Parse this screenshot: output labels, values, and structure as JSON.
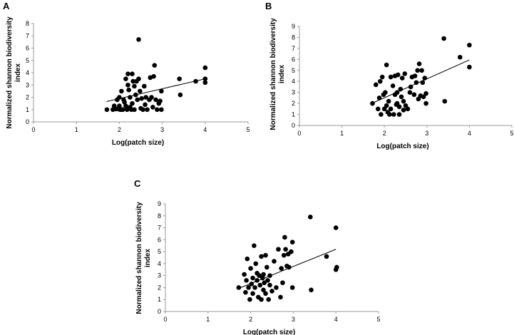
{
  "chart_data": [
    {
      "panel_label": "A",
      "type": "scatter",
      "xlabel": "Log(patch size)",
      "ylabel_lines": [
        "Normalized shannon biodiversity",
        "index"
      ],
      "xlim": [
        0,
        5
      ],
      "ylim": [
        0,
        8
      ],
      "xticks": [
        0,
        1,
        2,
        3,
        4,
        5
      ],
      "yticks": [
        0,
        1,
        2,
        3,
        4,
        5,
        6,
        7,
        8
      ],
      "trendline": [
        [
          1.7,
          1.65
        ],
        [
          4.0,
          3.5
        ]
      ],
      "points": [
        [
          1.71,
          1.0
        ],
        [
          1.85,
          1.0
        ],
        [
          1.88,
          1.3
        ],
        [
          1.92,
          1.05
        ],
        [
          1.95,
          1.8
        ],
        [
          1.98,
          1.05
        ],
        [
          2.0,
          2.0
        ],
        [
          2.0,
          1.3
        ],
        [
          2.02,
          1.0
        ],
        [
          2.05,
          1.0
        ],
        [
          2.05,
          2.5
        ],
        [
          2.08,
          1.0
        ],
        [
          2.1,
          1.8
        ],
        [
          2.12,
          1.6
        ],
        [
          2.15,
          1.3
        ],
        [
          2.15,
          3.5
        ],
        [
          2.18,
          1.0
        ],
        [
          2.2,
          3.9
        ],
        [
          2.2,
          3.0
        ],
        [
          2.22,
          2.6
        ],
        [
          2.25,
          1.2
        ],
        [
          2.25,
          2.0
        ],
        [
          2.28,
          1.0
        ],
        [
          2.3,
          3.9
        ],
        [
          2.3,
          1.5
        ],
        [
          2.32,
          3.3
        ],
        [
          2.35,
          2.9
        ],
        [
          2.35,
          1.0
        ],
        [
          2.38,
          2.2
        ],
        [
          2.4,
          3.3
        ],
        [
          2.42,
          1.8
        ],
        [
          2.45,
          6.7
        ],
        [
          2.45,
          3.5
        ],
        [
          2.48,
          2.5
        ],
        [
          2.5,
          1.1
        ],
        [
          2.52,
          1.9
        ],
        [
          2.55,
          1.0
        ],
        [
          2.58,
          2.9
        ],
        [
          2.6,
          1.4
        ],
        [
          2.62,
          2.0
        ],
        [
          2.65,
          1.0
        ],
        [
          2.7,
          1.8
        ],
        [
          2.72,
          3.6
        ],
        [
          2.75,
          2.0
        ],
        [
          2.78,
          1.2
        ],
        [
          2.8,
          3.7
        ],
        [
          2.82,
          4.6
        ],
        [
          2.85,
          1.8
        ],
        [
          2.88,
          1.0
        ],
        [
          2.92,
          1.5
        ],
        [
          2.95,
          1.7
        ],
        [
          2.98,
          1.0
        ],
        [
          2.98,
          2.5
        ],
        [
          3.4,
          3.5
        ],
        [
          3.42,
          2.2
        ],
        [
          3.78,
          3.3
        ],
        [
          4.0,
          4.4
        ],
        [
          4.0,
          3.5
        ],
        [
          4.0,
          3.2
        ]
      ]
    },
    {
      "panel_label": "B",
      "type": "scatter",
      "xlabel": "Log(patch size)",
      "ylabel_lines": [
        "Normalized shannon biodiversity",
        "index"
      ],
      "xlim": [
        0,
        5
      ],
      "ylim": [
        0,
        9
      ],
      "xticks": [
        0,
        1,
        2,
        3,
        4,
        5
      ],
      "yticks": [
        0,
        1,
        2,
        3,
        4,
        5,
        6,
        7,
        8,
        9
      ],
      "trendline": [
        [
          1.7,
          2.0
        ],
        [
          4.0,
          5.95
        ]
      ],
      "points": [
        [
          1.72,
          2.0
        ],
        [
          1.8,
          3.7
        ],
        [
          1.85,
          1.5
        ],
        [
          1.88,
          2.5
        ],
        [
          1.9,
          4.0
        ],
        [
          1.92,
          1.0
        ],
        [
          1.95,
          4.4
        ],
        [
          1.98,
          2.8
        ],
        [
          2.0,
          1.5
        ],
        [
          2.02,
          3.0
        ],
        [
          2.05,
          5.5
        ],
        [
          2.05,
          1.8
        ],
        [
          2.08,
          1.2
        ],
        [
          2.1,
          2.2
        ],
        [
          2.12,
          1.0
        ],
        [
          2.15,
          4.4
        ],
        [
          2.15,
          1.5
        ],
        [
          2.2,
          3.6
        ],
        [
          2.22,
          1.0
        ],
        [
          2.25,
          2.8
        ],
        [
          2.25,
          4.5
        ],
        [
          2.28,
          1.9
        ],
        [
          2.3,
          2.0
        ],
        [
          2.3,
          3.0
        ],
        [
          2.32,
          4.6
        ],
        [
          2.35,
          1.7
        ],
        [
          2.35,
          1.0
        ],
        [
          2.38,
          3.3
        ],
        [
          2.4,
          2.6
        ],
        [
          2.42,
          4.3
        ],
        [
          2.45,
          1.4
        ],
        [
          2.45,
          2.2
        ],
        [
          2.48,
          4.7
        ],
        [
          2.5,
          1.8
        ],
        [
          2.55,
          1.5
        ],
        [
          2.6,
          3.0
        ],
        [
          2.62,
          3.5
        ],
        [
          2.65,
          4.4
        ],
        [
          2.7,
          2.8
        ],
        [
          2.72,
          4.5
        ],
        [
          2.75,
          3.9
        ],
        [
          2.78,
          5.0
        ],
        [
          2.8,
          2.4
        ],
        [
          2.82,
          5.6
        ],
        [
          2.85,
          2.7
        ],
        [
          2.88,
          5.0
        ],
        [
          2.9,
          3.9
        ],
        [
          2.92,
          2.6
        ],
        [
          2.95,
          4.3
        ],
        [
          2.98,
          2.0
        ],
        [
          2.98,
          2.9
        ],
        [
          3.4,
          7.9
        ],
        [
          3.42,
          2.2
        ],
        [
          3.78,
          6.2
        ],
        [
          4.0,
          7.3
        ],
        [
          4.0,
          5.3
        ]
      ]
    },
    {
      "panel_label": "C",
      "type": "scatter",
      "xlabel": "Log(patch size)",
      "ylabel_lines": [
        "Normalized shannon biodiversity",
        "index"
      ],
      "xlim": [
        0,
        5
      ],
      "ylim": [
        0,
        9
      ],
      "xticks": [
        0,
        1,
        2,
        3,
        4,
        5
      ],
      "yticks": [
        0,
        1,
        2,
        3,
        4,
        5,
        6,
        7,
        8,
        9
      ],
      "trendline": [
        [
          1.7,
          1.9
        ],
        [
          4.0,
          5.2
        ]
      ],
      "points": [
        [
          1.72,
          2.0
        ],
        [
          1.85,
          3.1
        ],
        [
          1.88,
          1.6
        ],
        [
          1.9,
          2.6
        ],
        [
          1.92,
          4.4
        ],
        [
          1.95,
          2.0
        ],
        [
          1.98,
          1.0
        ],
        [
          2.0,
          3.6
        ],
        [
          2.02,
          2.3
        ],
        [
          2.05,
          1.5
        ],
        [
          2.05,
          2.8
        ],
        [
          2.08,
          5.5
        ],
        [
          2.1,
          2.0
        ],
        [
          2.12,
          4.0
        ],
        [
          2.15,
          2.6
        ],
        [
          2.15,
          3.2
        ],
        [
          2.18,
          1.2
        ],
        [
          2.2,
          3.0
        ],
        [
          2.22,
          2.2
        ],
        [
          2.25,
          1.0
        ],
        [
          2.25,
          4.6
        ],
        [
          2.28,
          2.8
        ],
        [
          2.3,
          1.8
        ],
        [
          2.3,
          3.1
        ],
        [
          2.32,
          2.4
        ],
        [
          2.35,
          4.7
        ],
        [
          2.35,
          1.5
        ],
        [
          2.38,
          3.7
        ],
        [
          2.4,
          2.6
        ],
        [
          2.42,
          1.0
        ],
        [
          2.45,
          3.0
        ],
        [
          2.45,
          2.2
        ],
        [
          2.5,
          1.7
        ],
        [
          2.55,
          4.2
        ],
        [
          2.6,
          2.0
        ],
        [
          2.65,
          5.2
        ],
        [
          2.7,
          1.2
        ],
        [
          2.72,
          3.6
        ],
        [
          2.75,
          2.4
        ],
        [
          2.78,
          4.7
        ],
        [
          2.8,
          6.2
        ],
        [
          2.82,
          5.2
        ],
        [
          2.85,
          3.8
        ],
        [
          2.88,
          4.8
        ],
        [
          2.9,
          3.7
        ],
        [
          2.95,
          5.0
        ],
        [
          2.98,
          2.0
        ],
        [
          2.98,
          5.8
        ],
        [
          3.4,
          7.9
        ],
        [
          3.42,
          1.8
        ],
        [
          3.78,
          4.6
        ],
        [
          4.0,
          7.0
        ],
        [
          4.02,
          3.7
        ],
        [
          4.0,
          3.5
        ]
      ]
    }
  ]
}
